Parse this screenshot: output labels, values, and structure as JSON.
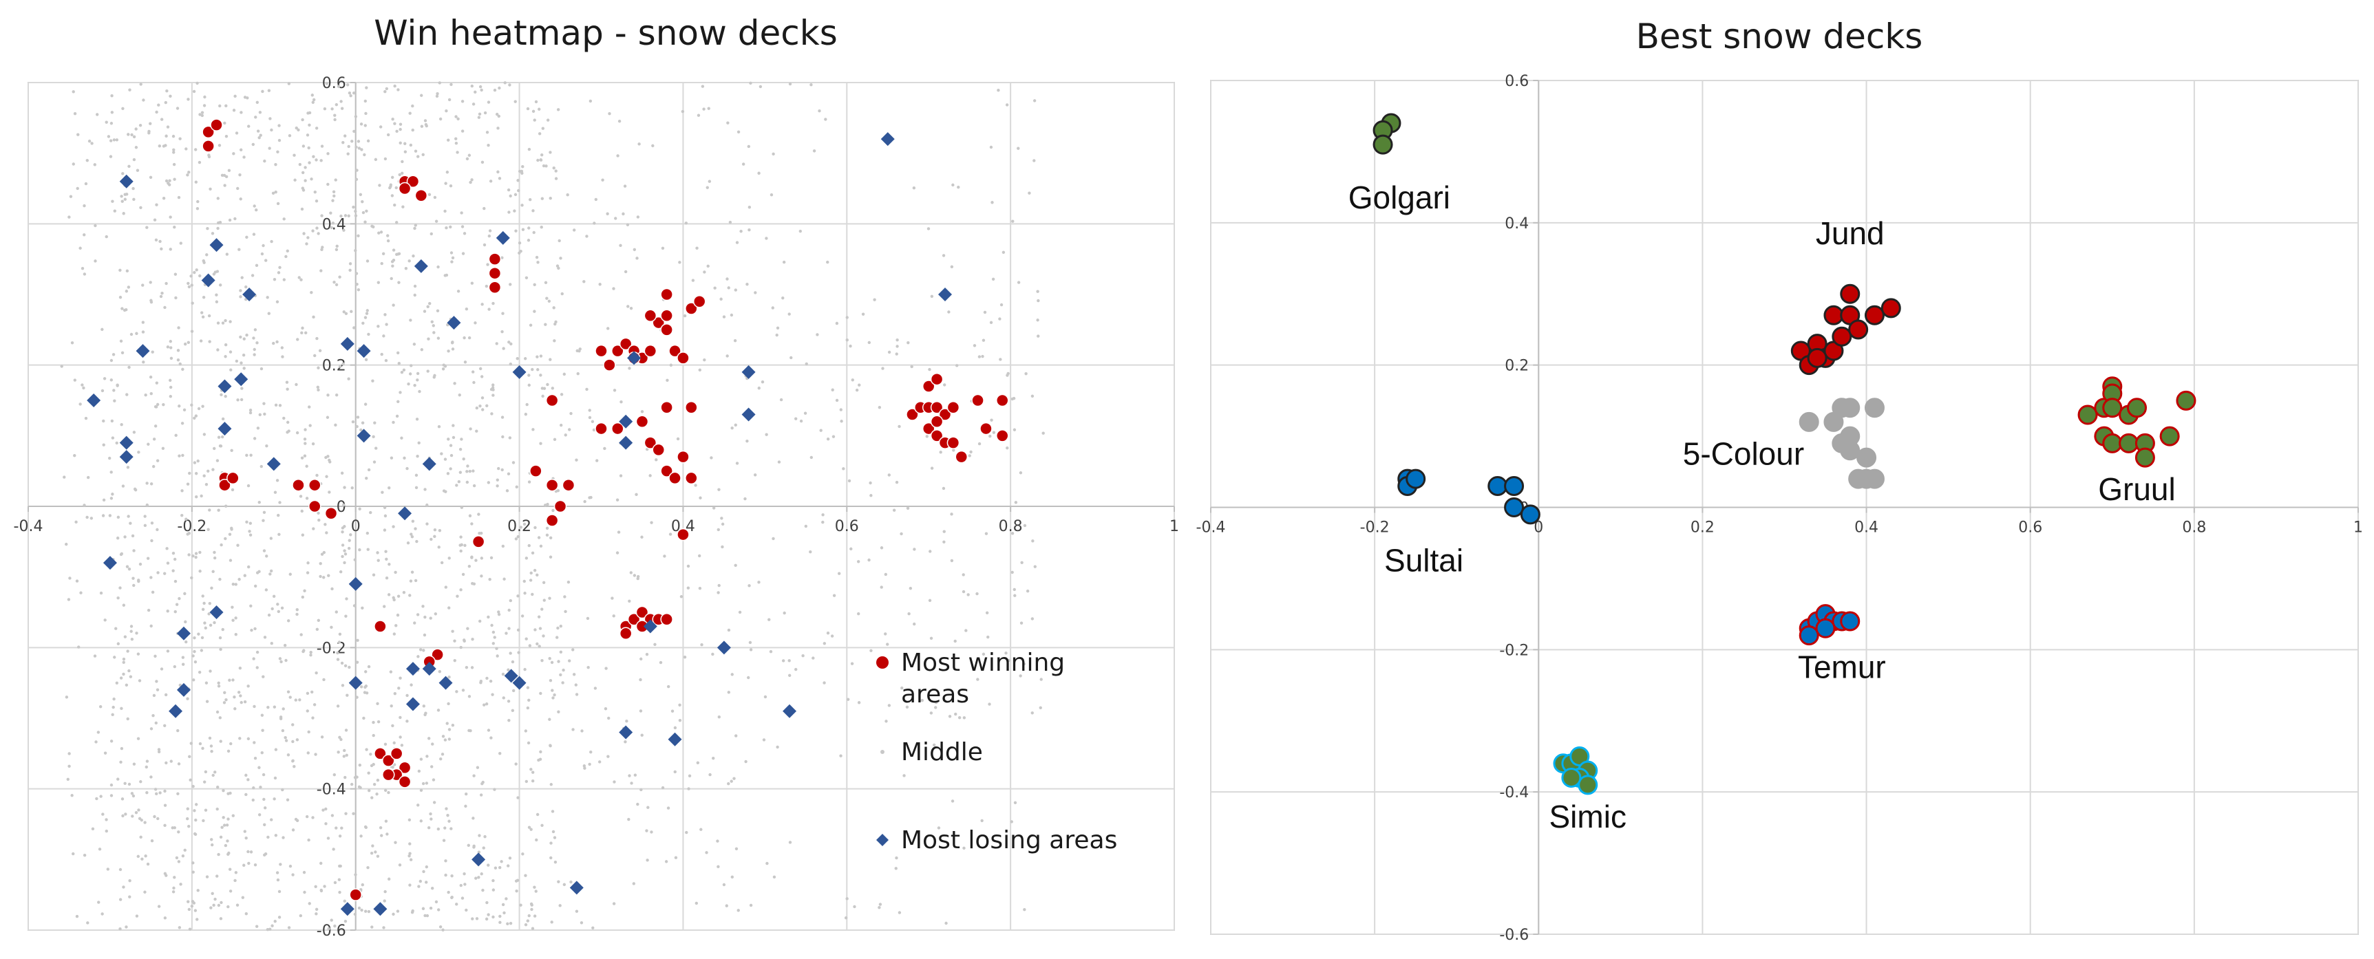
{
  "chart_data": [
    {
      "type": "scatter",
      "title": "Win heatmap - snow decks",
      "xlabel": "",
      "ylabel": "",
      "xlim": [
        -0.4,
        1
      ],
      "ylim": [
        -0.6,
        0.6
      ],
      "x_ticks": [
        "-0.4",
        "-0.2",
        "0",
        "0.2",
        "0.4",
        "0.6",
        "0.8",
        "1"
      ],
      "y_ticks": [
        "-0.6",
        "-0.4",
        "-0.2",
        "0",
        "0.2",
        "0.4",
        "0.6"
      ],
      "grid": true,
      "legend_position": "right",
      "series": [
        {
          "name": "Most winning areas",
          "color": "#c00000",
          "marker": "circle",
          "points": [
            [
              -0.18,
              0.53
            ],
            [
              -0.18,
              0.51
            ],
            [
              -0.17,
              0.54
            ],
            [
              0.06,
              0.46
            ],
            [
              0.07,
              0.46
            ],
            [
              0.08,
              0.44
            ],
            [
              0.06,
              0.45
            ],
            [
              0.17,
              0.35
            ],
            [
              0.17,
              0.33
            ],
            [
              0.17,
              0.31
            ],
            [
              -0.16,
              0.04
            ],
            [
              -0.16,
              0.03
            ],
            [
              -0.15,
              0.04
            ],
            [
              -0.07,
              0.03
            ],
            [
              -0.05,
              0.03
            ],
            [
              -0.05,
              0.0
            ],
            [
              -0.03,
              -0.01
            ],
            [
              0.15,
              -0.05
            ],
            [
              0.3,
              0.22
            ],
            [
              0.31,
              0.2
            ],
            [
              0.32,
              0.22
            ],
            [
              0.33,
              0.23
            ],
            [
              0.34,
              0.22
            ],
            [
              0.35,
              0.21
            ],
            [
              0.36,
              0.22
            ],
            [
              0.37,
              0.26
            ],
            [
              0.38,
              0.25
            ],
            [
              0.38,
              0.3
            ],
            [
              0.38,
              0.27
            ],
            [
              0.39,
              0.22
            ],
            [
              0.4,
              0.21
            ],
            [
              0.41,
              0.28
            ],
            [
              0.42,
              0.29
            ],
            [
              0.36,
              0.27
            ],
            [
              0.34,
              0.21
            ],
            [
              0.24,
              0.15
            ],
            [
              0.3,
              0.11
            ],
            [
              0.32,
              0.11
            ],
            [
              0.35,
              0.12
            ],
            [
              0.36,
              0.09
            ],
            [
              0.37,
              0.08
            ],
            [
              0.38,
              0.14
            ],
            [
              0.41,
              0.14
            ],
            [
              0.4,
              0.07
            ],
            [
              0.38,
              0.05
            ],
            [
              0.39,
              0.04
            ],
            [
              0.41,
              0.04
            ],
            [
              0.22,
              0.05
            ],
            [
              0.24,
              0.03
            ],
            [
              0.26,
              0.03
            ],
            [
              0.25,
              0.0
            ],
            [
              0.24,
              -0.02
            ],
            [
              0.68,
              0.13
            ],
            [
              0.69,
              0.14
            ],
            [
              0.7,
              0.17
            ],
            [
              0.71,
              0.18
            ],
            [
              0.7,
              0.14
            ],
            [
              0.71,
              0.14
            ],
            [
              0.72,
              0.13
            ],
            [
              0.73,
              0.14
            ],
            [
              0.7,
              0.11
            ],
            [
              0.71,
              0.1
            ],
            [
              0.72,
              0.09
            ],
            [
              0.73,
              0.09
            ],
            [
              0.74,
              0.07
            ],
            [
              0.76,
              0.15
            ],
            [
              0.79,
              0.15
            ],
            [
              0.77,
              0.11
            ],
            [
              0.79,
              0.1
            ],
            [
              0.71,
              0.12
            ],
            [
              0.4,
              -0.04
            ],
            [
              0.33,
              -0.17
            ],
            [
              0.34,
              -0.16
            ],
            [
              0.35,
              -0.15
            ],
            [
              0.36,
              -0.16
            ],
            [
              0.37,
              -0.16
            ],
            [
              0.38,
              -0.16
            ],
            [
              0.33,
              -0.18
            ],
            [
              0.35,
              -0.17
            ],
            [
              0.03,
              -0.17
            ],
            [
              0.1,
              -0.21
            ],
            [
              0.09,
              -0.22
            ],
            [
              0.03,
              -0.35
            ],
            [
              0.04,
              -0.36
            ],
            [
              0.05,
              -0.35
            ],
            [
              0.06,
              -0.37
            ],
            [
              0.05,
              -0.38
            ],
            [
              0.06,
              -0.39
            ],
            [
              0.04,
              -0.38
            ],
            [
              0.0,
              -0.55
            ]
          ]
        },
        {
          "name": "Middle",
          "color": "#c8c8c8",
          "marker": "dot",
          "points": []
        },
        {
          "name": "Most losing areas",
          "color": "#2f5597",
          "marker": "diamond",
          "points": [
            [
              -0.28,
              0.46
            ],
            [
              -0.17,
              0.37
            ],
            [
              -0.18,
              0.32
            ],
            [
              -0.13,
              0.3
            ],
            [
              -0.26,
              0.22
            ],
            [
              -0.16,
              0.17
            ],
            [
              -0.14,
              0.18
            ],
            [
              -0.16,
              0.11
            ],
            [
              -0.32,
              0.15
            ],
            [
              -0.28,
              0.09
            ],
            [
              -0.28,
              0.07
            ],
            [
              -0.1,
              0.06
            ],
            [
              0.65,
              0.52
            ],
            [
              0.72,
              0.3
            ],
            [
              0.18,
              0.38
            ],
            [
              0.08,
              0.34
            ],
            [
              0.12,
              0.26
            ],
            [
              -0.01,
              0.23
            ],
            [
              0.01,
              0.22
            ],
            [
              0.2,
              0.19
            ],
            [
              0.01,
              0.1
            ],
            [
              0.09,
              0.06
            ],
            [
              0.06,
              -0.01
            ],
            [
              0.33,
              0.12
            ],
            [
              0.33,
              0.09
            ],
            [
              0.34,
              0.21
            ],
            [
              0.48,
              0.19
            ],
            [
              0.48,
              0.13
            ],
            [
              -0.3,
              -0.08
            ],
            [
              0.0,
              -0.11
            ],
            [
              -0.17,
              -0.15
            ],
            [
              -0.21,
              -0.18
            ],
            [
              0.07,
              -0.23
            ],
            [
              0.09,
              -0.23
            ],
            [
              0.11,
              -0.25
            ],
            [
              0.0,
              -0.25
            ],
            [
              0.07,
              -0.28
            ],
            [
              0.19,
              -0.24
            ],
            [
              0.2,
              -0.25
            ],
            [
              -0.21,
              -0.26
            ],
            [
              -0.22,
              -0.29
            ],
            [
              0.36,
              -0.17
            ],
            [
              0.45,
              -0.2
            ],
            [
              0.53,
              -0.29
            ],
            [
              0.33,
              -0.32
            ],
            [
              0.39,
              -0.33
            ],
            [
              0.15,
              -0.5
            ],
            [
              0.27,
              -0.54
            ],
            [
              -0.01,
              -0.57
            ],
            [
              0.03,
              -0.57
            ]
          ]
        }
      ]
    },
    {
      "type": "scatter",
      "title": "Best snow decks",
      "xlabel": "",
      "ylabel": "",
      "xlim": [
        -0.4,
        1
      ],
      "ylim": [
        -0.6,
        0.6
      ],
      "x_ticks": [
        "-0.4",
        "-0.2",
        "0",
        "0.2",
        "0.4",
        "0.6",
        "0.8",
        "1"
      ],
      "y_ticks": [
        "-0.6",
        "-0.4",
        "-0.2",
        "0",
        "0.2",
        "0.4",
        "0.6"
      ],
      "grid": true,
      "series": [
        {
          "name": "Golgari",
          "fill": "#548235",
          "stroke": "#222222",
          "points": [
            [
              -0.18,
              0.54
            ],
            [
              -0.19,
              0.53
            ],
            [
              -0.19,
              0.51
            ]
          ]
        },
        {
          "name": "Jund",
          "fill": "#c00000",
          "stroke": "#222222",
          "points": [
            [
              0.32,
              0.22
            ],
            [
              0.33,
              0.2
            ],
            [
              0.34,
              0.23
            ],
            [
              0.35,
              0.21
            ],
            [
              0.36,
              0.22
            ],
            [
              0.36,
              0.27
            ],
            [
              0.37,
              0.24
            ],
            [
              0.38,
              0.27
            ],
            [
              0.38,
              0.3
            ],
            [
              0.39,
              0.25
            ],
            [
              0.41,
              0.27
            ],
            [
              0.43,
              0.28
            ],
            [
              0.34,
              0.21
            ]
          ]
        },
        {
          "name": "5-Colour",
          "fill": "#a6a6a6",
          "stroke": "#a6a6a6",
          "points": [
            [
              0.33,
              0.12
            ],
            [
              0.36,
              0.12
            ],
            [
              0.37,
              0.14
            ],
            [
              0.38,
              0.1
            ],
            [
              0.37,
              0.09
            ],
            [
              0.38,
              0.08
            ],
            [
              0.38,
              0.14
            ],
            [
              0.41,
              0.14
            ],
            [
              0.4,
              0.07
            ],
            [
              0.39,
              0.04
            ],
            [
              0.4,
              0.04
            ],
            [
              0.41,
              0.04
            ]
          ]
        },
        {
          "name": "Gruul",
          "fill": "#548235",
          "stroke": "#c00000",
          "points": [
            [
              0.67,
              0.13
            ],
            [
              0.69,
              0.14
            ],
            [
              0.7,
              0.17
            ],
            [
              0.7,
              0.16
            ],
            [
              0.7,
              0.14
            ],
            [
              0.72,
              0.13
            ],
            [
              0.73,
              0.14
            ],
            [
              0.69,
              0.1
            ],
            [
              0.7,
              0.09
            ],
            [
              0.72,
              0.09
            ],
            [
              0.74,
              0.09
            ],
            [
              0.74,
              0.07
            ],
            [
              0.77,
              0.1
            ],
            [
              0.79,
              0.15
            ]
          ]
        },
        {
          "name": "Sultai",
          "fill": "#0070c0",
          "stroke": "#222222",
          "points": [
            [
              -0.16,
              0.04
            ],
            [
              -0.16,
              0.03
            ],
            [
              -0.15,
              0.04
            ],
            [
              -0.05,
              0.03
            ],
            [
              -0.03,
              0.03
            ],
            [
              -0.03,
              0.0
            ],
            [
              -0.01,
              -0.01
            ]
          ]
        },
        {
          "name": "Temur",
          "fill": "#0070c0",
          "stroke": "#c00000",
          "points": [
            [
              0.33,
              -0.17
            ],
            [
              0.34,
              -0.16
            ],
            [
              0.35,
              -0.15
            ],
            [
              0.36,
              -0.16
            ],
            [
              0.37,
              -0.16
            ],
            [
              0.38,
              -0.16
            ],
            [
              0.33,
              -0.18
            ],
            [
              0.35,
              -0.17
            ]
          ]
        },
        {
          "name": "Simic",
          "fill": "#548235",
          "stroke": "#00b0f0",
          "points": [
            [
              0.03,
              -0.36
            ],
            [
              0.04,
              -0.36
            ],
            [
              0.05,
              -0.35
            ],
            [
              0.06,
              -0.37
            ],
            [
              0.05,
              -0.38
            ],
            [
              0.06,
              -0.39
            ],
            [
              0.04,
              -0.38
            ]
          ]
        }
      ]
    }
  ]
}
